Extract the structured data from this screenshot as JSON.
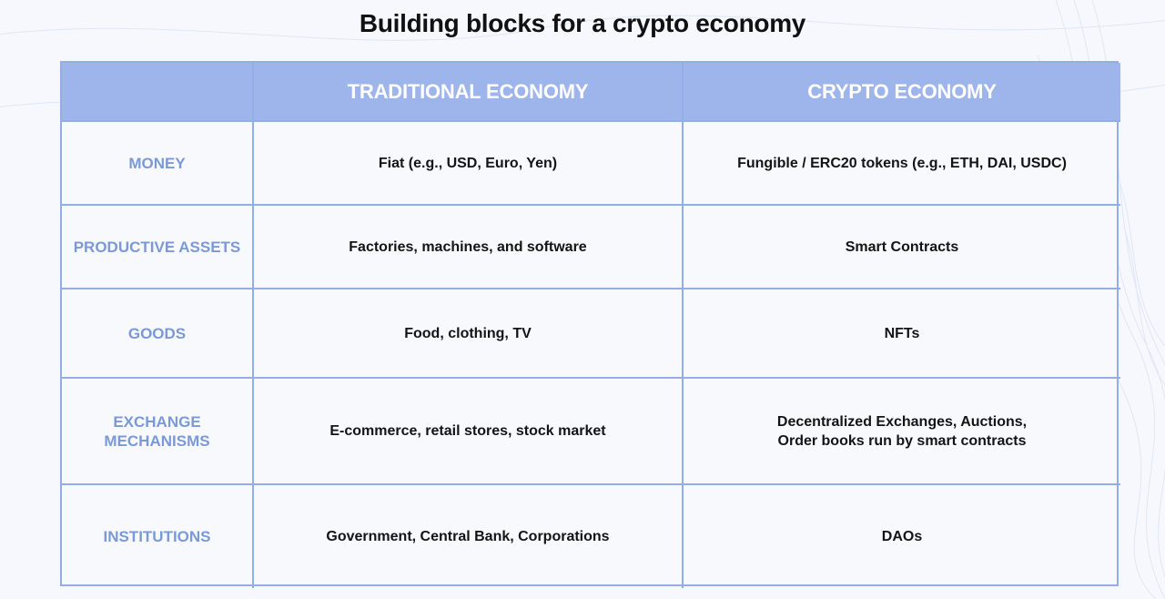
{
  "title": "Building blocks for a crypto economy",
  "table": {
    "headers": [
      "",
      "TRADITIONAL ECONOMY",
      "CRYPTO ECONOMY"
    ],
    "rows": [
      {
        "label": "MONEY",
        "traditional": "Fiat (e.g., USD, Euro, Yen)",
        "crypto": "Fungible / ERC20 tokens (e.g., ETH, DAI, USDC)"
      },
      {
        "label": "PRODUCTIVE ASSETS",
        "traditional": "Factories, machines, and software",
        "crypto": "Smart Contracts"
      },
      {
        "label": "GOODS",
        "traditional": "Food, clothing, TV",
        "crypto": "NFTs"
      },
      {
        "label": "EXCHANGE MECHANISMS",
        "traditional": "E-commerce, retail stores, stock market",
        "crypto": "Decentralized Exchanges, Auctions, Order books run by smart contracts"
      },
      {
        "label": "INSTITUTIONS",
        "traditional": "Government, Central Bank, Corporations",
        "crypto": "DAOs"
      }
    ]
  },
  "colors": {
    "header_bg": "#9db5ea",
    "border": "#93aee5",
    "row_label": "#7b99d9",
    "body_text": "#141414",
    "page_bg": "#f6f8fd"
  }
}
